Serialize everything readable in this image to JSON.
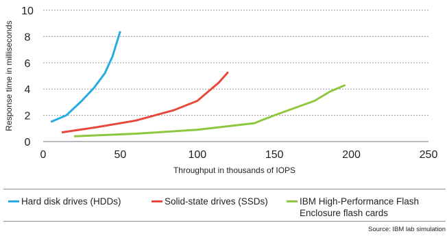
{
  "chart_data": {
    "type": "line",
    "xlabel": "Throughput in thousands of IOPS",
    "ylabel": "Response time in milliseconds",
    "xlim": [
      0,
      250
    ],
    "ylim": [
      0,
      10
    ],
    "x_ticks": [
      "0",
      "50",
      "100",
      "150",
      "200",
      "250"
    ],
    "y_ticks": [
      "0",
      "2",
      "4",
      "6",
      "8",
      "10"
    ],
    "grid": "horizontal dashed",
    "legend_position": "bottom",
    "series": [
      {
        "name": "Hard disk drives (HDDs)",
        "color": "#29abe2",
        "x": [
          5,
          15,
          25,
          33,
          40,
          45,
          50
        ],
        "y": [
          1.5,
          2.0,
          3.1,
          4.1,
          5.2,
          6.5,
          8.4
        ]
      },
      {
        "name": "Solid-state drives (SSDs)",
        "color": "#e8473b",
        "x": [
          12,
          35,
          60,
          85,
          100,
          108,
          114,
          120
        ],
        "y": [
          0.7,
          1.1,
          1.6,
          2.4,
          3.1,
          3.9,
          4.5,
          5.3
        ]
      },
      {
        "name": "IBM High-Performance Flash Enclosure flash cards",
        "color": "#8dc63f",
        "x": [
          20,
          60,
          100,
          137,
          150,
          176,
          186,
          196
        ],
        "y": [
          0.4,
          0.6,
          0.9,
          1.4,
          2.0,
          3.1,
          3.8,
          4.3
        ]
      }
    ]
  },
  "legend": {
    "items": [
      {
        "label": "Hard disk drives (HDDs)",
        "color": "#29abe2"
      },
      {
        "label": "Solid-state drives (SSDs)",
        "color": "#e8473b"
      },
      {
        "label": "IBM High-Performance Flash Enclosure flash cards",
        "color": "#8dc63f"
      }
    ]
  },
  "source": "Source: IBM lab simulation"
}
